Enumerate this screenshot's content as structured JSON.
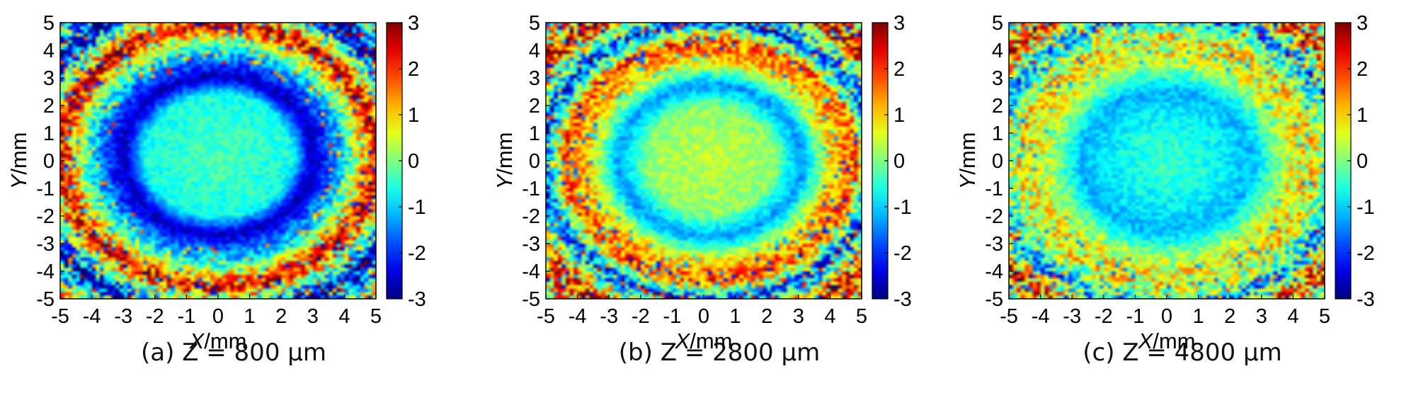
{
  "chart_data": [
    {
      "type": "heatmap",
      "caption": "(a) Z = 800 μm",
      "xlabel": "X/mm",
      "ylabel": "Y/mm",
      "xlim": [
        -5,
        5
      ],
      "ylim": [
        -5,
        5
      ],
      "xticks": [
        "-5",
        "-4",
        "-3",
        "-2",
        "-1",
        "0",
        "1",
        "2",
        "3",
        "4",
        "5"
      ],
      "yticks": [
        "5",
        "4",
        "3",
        "2",
        "1",
        "0",
        "-1",
        "-2",
        "-3",
        "-4",
        "-5"
      ],
      "colorbar": {
        "min": -3,
        "max": 3,
        "ticks": [
          "3",
          "2",
          "1",
          "0",
          "-1",
          "-2",
          "-3"
        ],
        "colormap": "jet"
      },
      "pattern": {
        "center": [
          0.0,
          0.2
        ],
        "description": "concentric phase rings",
        "rings": [
          {
            "radius_mm": 0,
            "value": -0.3
          },
          {
            "radius_mm": 2.3,
            "value": -0.6
          },
          {
            "radius_mm": 3.0,
            "value": -2.7
          },
          {
            "radius_mm": 4.0,
            "value": -0.9
          },
          {
            "radius_mm": 5.0,
            "value": 2.4
          },
          {
            "radius_mm": 6.2,
            "value": -2.8
          },
          {
            "radius_mm": 7.5,
            "value": 2.0
          }
        ]
      }
    },
    {
      "type": "heatmap",
      "caption": "(b) Z = 2800 μm",
      "xlabel": "X/mm",
      "ylabel": "Y/mm",
      "xlim": [
        -5,
        5
      ],
      "ylim": [
        -5,
        5
      ],
      "xticks": [
        "-5",
        "-4",
        "-3",
        "-2",
        "-1",
        "0",
        "1",
        "2",
        "3",
        "4",
        "5"
      ],
      "yticks": [
        "5",
        "4",
        "3",
        "2",
        "1",
        "0",
        "-1",
        "-2",
        "-3",
        "-4",
        "-5"
      ],
      "colorbar": {
        "min": -3,
        "max": 3,
        "ticks": [
          "3",
          "2",
          "1",
          "0",
          "-1",
          "-2",
          "-3"
        ],
        "colormap": "jet"
      },
      "pattern": {
        "center": [
          0.2,
          0.0
        ],
        "description": "concentric phase rings",
        "rings": [
          {
            "radius_mm": 0,
            "value": 0.4
          },
          {
            "radius_mm": 2.0,
            "value": 0.1
          },
          {
            "radius_mm": 2.9,
            "value": -1.4
          },
          {
            "radius_mm": 3.8,
            "value": 0.9
          },
          {
            "radius_mm": 4.6,
            "value": 1.8
          },
          {
            "radius_mm": 5.3,
            "value": -2.0
          },
          {
            "radius_mm": 6.3,
            "value": 2.4
          },
          {
            "radius_mm": 7.5,
            "value": -0.5
          }
        ]
      }
    },
    {
      "type": "heatmap",
      "caption": "(c) Z = 4800 μm",
      "xlabel": "X/mm",
      "ylabel": "Y/mm",
      "xlim": [
        -5,
        5
      ],
      "ylim": [
        -5,
        5
      ],
      "xticks": [
        "-5",
        "-4",
        "-3",
        "-2",
        "-1",
        "0",
        "1",
        "2",
        "3",
        "4",
        "5"
      ],
      "yticks": [
        "5",
        "4",
        "3",
        "2",
        "1",
        "0",
        "-1",
        "-2",
        "-3",
        "-4",
        "-5"
      ],
      "colorbar": {
        "min": -3,
        "max": 3,
        "ticks": [
          "3",
          "2",
          "1",
          "0",
          "-1",
          "-2",
          "-3"
        ],
        "colormap": "jet"
      },
      "pattern": {
        "center": [
          0.0,
          0.0
        ],
        "description": "concentric phase rings",
        "rings": [
          {
            "radius_mm": 0,
            "value": -0.4
          },
          {
            "radius_mm": 1.5,
            "value": -0.7
          },
          {
            "radius_mm": 2.7,
            "value": -1.2
          },
          {
            "radius_mm": 3.9,
            "value": 0.6
          },
          {
            "radius_mm": 4.7,
            "value": 0.8
          },
          {
            "radius_mm": 5.6,
            "value": -1.3
          },
          {
            "radius_mm": 6.4,
            "value": 2.0
          },
          {
            "radius_mm": 7.5,
            "value": -0.6
          }
        ]
      }
    }
  ]
}
